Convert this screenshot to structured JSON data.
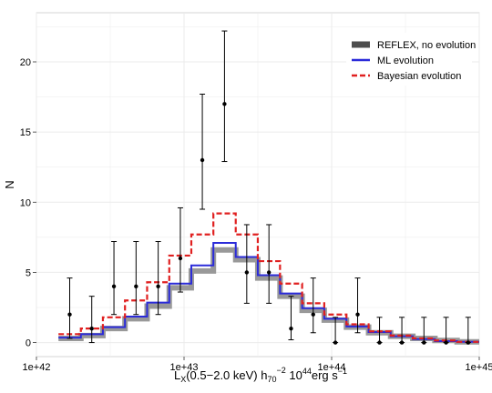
{
  "chart_data": {
    "type": "line",
    "xscale": "log",
    "xlim": [
      "1e+42",
      "1e+45"
    ],
    "ylim": [
      -1,
      23.5
    ],
    "grid": true,
    "legend_position": "top-right",
    "xlabel": {
      "prefix": "L",
      "sub1": "X",
      "mid1": "(0.5−2.0 keV) h",
      "sub2": "70",
      "sup2": "−2",
      "mid2": " 10",
      "sup3": "44",
      "suffix": "erg s",
      "sup4": "−1"
    },
    "ylabel": "N",
    "x_ticks": [
      "1e+42",
      "1e+43",
      "1e+44",
      "1e+45"
    ],
    "y_ticks": [
      "0",
      "5",
      "10",
      "15",
      "20"
    ],
    "colors": {
      "reflex": "#999999",
      "reflex_legend": "#4d4d4d",
      "ml": "#2b2bd9",
      "bayesian": "#e02020",
      "points": "#000000",
      "grid": "#ebebeb"
    },
    "bin_edges": [
      "1.41e+42",
      "2.0e+42",
      "2.82e+42",
      "3.98e+42",
      "5.62e+42",
      "7.94e+42",
      "1.12e+43",
      "1.58e+43",
      "2.24e+43",
      "3.16e+43",
      "4.47e+43",
      "6.31e+43",
      "8.91e+43",
      "1.26e+44",
      "1.78e+44",
      "2.51e+44",
      "3.55e+44",
      "5.01e+44",
      "7.08e+44",
      "1.0e+45"
    ],
    "series": [
      {
        "name": "REFLEX, no evolution",
        "style": "step",
        "values": [
          0.3,
          0.5,
          1.0,
          1.7,
          2.6,
          3.9,
          5.1,
          6.6,
          5.9,
          4.6,
          3.3,
          2.3,
          1.6,
          1.1,
          0.7,
          0.45,
          0.3,
          0.15,
          0.05
        ]
      },
      {
        "name": "ML evolution",
        "style": "step",
        "values": [
          0.35,
          0.6,
          1.1,
          1.85,
          2.85,
          4.2,
          5.5,
          7.1,
          6.1,
          4.8,
          3.5,
          2.45,
          1.7,
          1.15,
          0.75,
          0.45,
          0.25,
          0.1,
          0.05
        ]
      },
      {
        "name": "Bayesian evolution",
        "style": "step-dashed",
        "values": [
          0.6,
          1.0,
          1.8,
          3.0,
          4.3,
          6.2,
          7.7,
          9.2,
          7.7,
          5.8,
          4.2,
          2.8,
          2.0,
          1.3,
          0.8,
          0.5,
          0.3,
          0.15,
          0.05
        ]
      }
    ],
    "observed": {
      "x": [
        "1.68e+42",
        "2.37e+42",
        "3.35e+42",
        "4.73e+42",
        "6.68e+42",
        "9.44e+42",
        "1.33e+43",
        "1.88e+43",
        "2.66e+43",
        "3.76e+43",
        "5.31e+43",
        "7.5e+43",
        "1.06e+44",
        "1.5e+44",
        "2.11e+44",
        "2.99e+44",
        "4.22e+44",
        "5.96e+44",
        "8.41e+44"
      ],
      "y": [
        2,
        1,
        4,
        4,
        4,
        6,
        13,
        17,
        5,
        5,
        1,
        2,
        0,
        2,
        0,
        0,
        0,
        0,
        0
      ],
      "err_low": [
        1.7,
        1.0,
        2.0,
        2.0,
        2.0,
        2.4,
        3.5,
        4.1,
        2.2,
        2.2,
        0.8,
        1.3,
        0,
        1.3,
        0,
        0,
        0,
        0,
        0
      ],
      "err_high": [
        2.6,
        2.3,
        3.2,
        3.2,
        3.2,
        3.6,
        4.7,
        5.2,
        3.4,
        3.4,
        2.3,
        2.6,
        1.8,
        2.6,
        1.8,
        1.8,
        1.8,
        1.8,
        1.8
      ]
    }
  }
}
